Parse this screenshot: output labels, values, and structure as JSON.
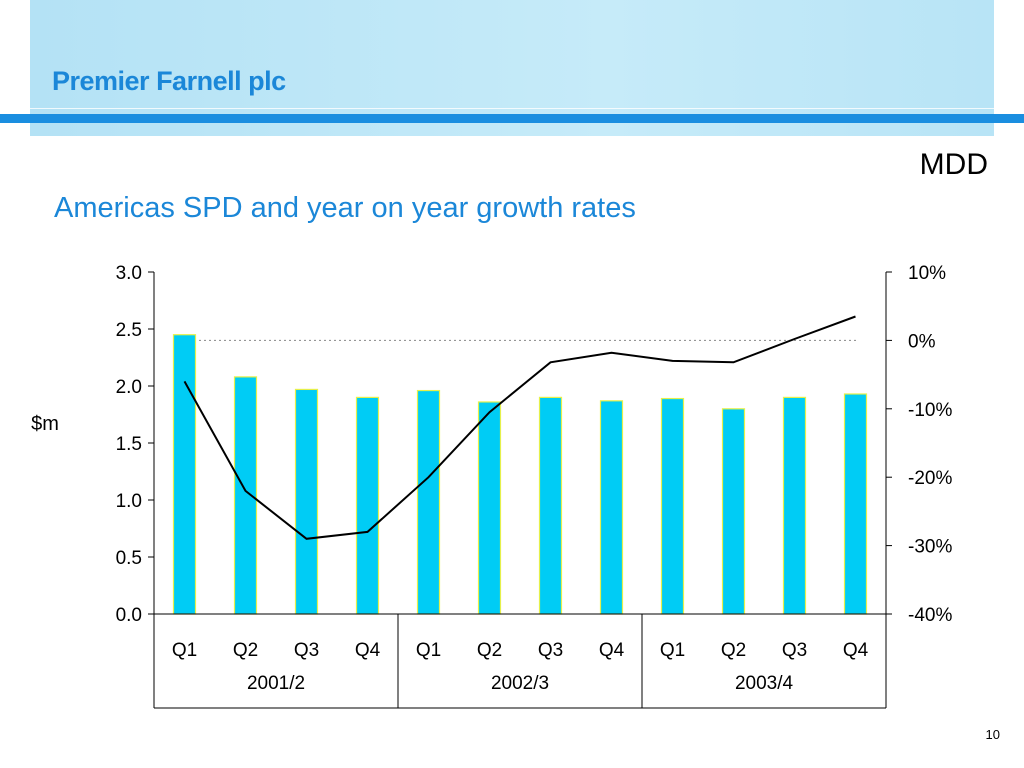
{
  "header": {
    "company": "Premier Farnell plc",
    "tag": "MDD",
    "title": "Americas SPD and year on year growth rates"
  },
  "footer": {
    "page_number": "10"
  },
  "colors": {
    "accent": "#1b87d8",
    "rule": "#1a8ee0",
    "bar_fill": "#00ccf5",
    "bar_edge": "#e6f04a",
    "line": "#000000"
  },
  "chart_data": {
    "type": "bar",
    "categories": [
      "Q1",
      "Q2",
      "Q3",
      "Q4",
      "Q1",
      "Q2",
      "Q3",
      "Q4",
      "Q1",
      "Q2",
      "Q3",
      "Q4"
    ],
    "groups": [
      {
        "label": "2001/2",
        "start": 0,
        "count": 4
      },
      {
        "label": "2002/3",
        "start": 4,
        "count": 4
      },
      {
        "label": "2003/4",
        "start": 8,
        "count": 4
      }
    ],
    "ylabel": "$m",
    "ylim": [
      0,
      3
    ],
    "y_ticks": [
      0,
      0.5,
      1,
      1.5,
      2,
      2.5,
      3
    ],
    "y_tick_labels": [
      "0.0",
      "0.5",
      "1.0",
      "1.5",
      "2.0",
      "2.5",
      "3.0"
    ],
    "y2lim": [
      -40,
      10
    ],
    "y2_ticks": [
      -40,
      -30,
      -20,
      -10,
      0,
      10
    ],
    "y2_tick_labels": [
      "-40%",
      "-30%",
      "-20%",
      "-10%",
      "0%",
      "10%"
    ],
    "reference_line_y2": 0,
    "series": [
      {
        "type": "bar",
        "axis": "left",
        "values": [
          2.45,
          2.08,
          1.97,
          1.9,
          1.96,
          1.86,
          1.9,
          1.87,
          1.89,
          1.8,
          1.9,
          1.93
        ]
      },
      {
        "type": "line",
        "axis": "right",
        "values": [
          -6,
          -22,
          -29,
          -28,
          -20,
          -10.5,
          -3.2,
          -1.8,
          -3,
          -3.2,
          0.2,
          3.5
        ]
      }
    ],
    "grid": false,
    "legend": "none"
  }
}
